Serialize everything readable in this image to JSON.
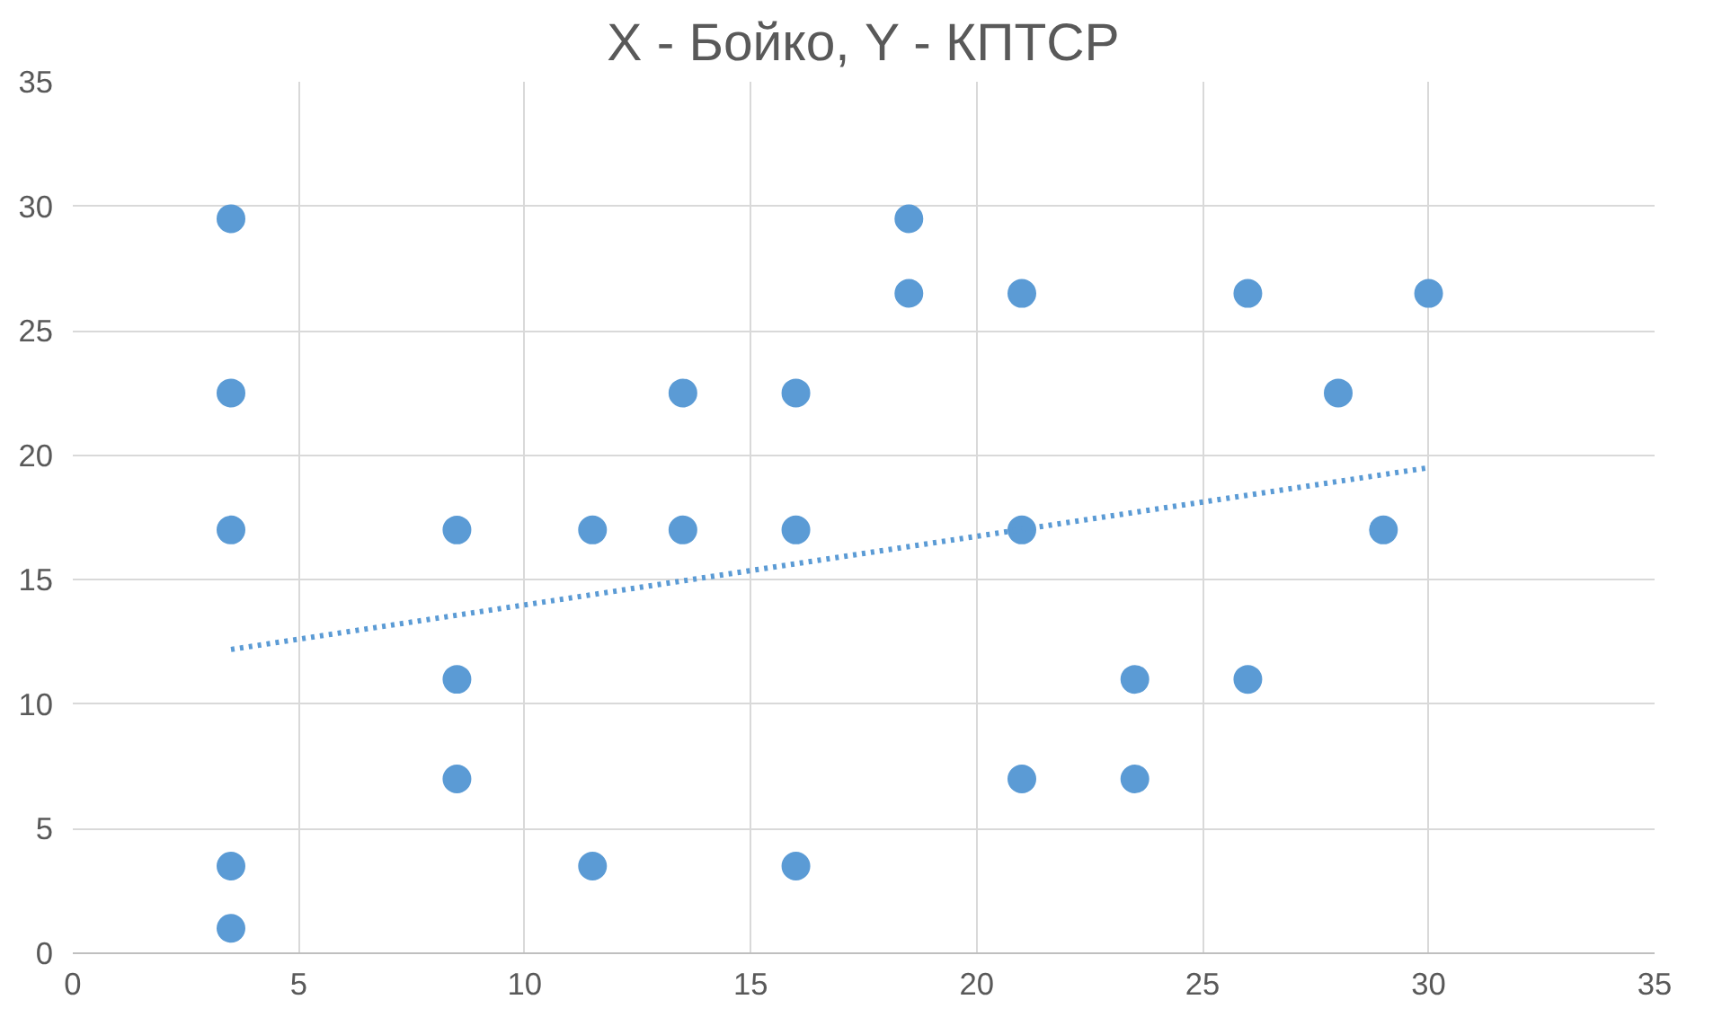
{
  "chart_data": {
    "type": "scatter",
    "title": "X - Бойко, Y - КПТСР",
    "series": [
      {
        "color": "#5b9bd5",
        "marker": "circle",
        "x": [
          3.5,
          3.5,
          3.5,
          3.5,
          3.5,
          8.5,
          8.5,
          8.5,
          11.5,
          11.5,
          13.5,
          13.5,
          16,
          16,
          16,
          18.5,
          18.5,
          21,
          21,
          21,
          23.5,
          23.5,
          26,
          26,
          28,
          29,
          30
        ],
        "values": [
          29.5,
          22.5,
          17,
          3.5,
          1,
          17,
          11,
          7,
          17,
          3.5,
          22.5,
          17,
          22.5,
          17,
          3.5,
          29.5,
          26.5,
          26.5,
          17,
          7,
          11,
          7,
          26.5,
          11,
          22.5,
          17,
          26.5
        ]
      },
      {
        "type": "line",
        "color": "#5b9bd5",
        "line_style": "dotted",
        "x": [
          3.5,
          30
        ],
        "values": [
          12.2,
          19.5
        ]
      }
    ],
    "xlim": [
      0,
      35
    ],
    "xticks": [
      0,
      5,
      10,
      15,
      20,
      25,
      30,
      35
    ],
    "ylim": [
      0,
      35
    ],
    "yticks": [
      0,
      5,
      10,
      15,
      20,
      25,
      30,
      35
    ],
    "grid": true
  }
}
